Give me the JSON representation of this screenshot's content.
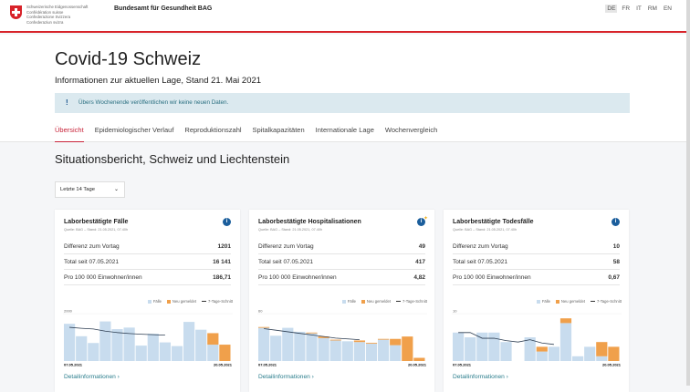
{
  "header": {
    "confederation": [
      "Schweizerische Eidgenossenschaft",
      "Confédération suisse",
      "Confederazione Svizzera",
      "Confederaziun svizra"
    ],
    "agency": "Bundesamt für Gesundheit BAG",
    "languages": [
      "DE",
      "FR",
      "IT",
      "RM",
      "EN"
    ],
    "active_language": "DE"
  },
  "page": {
    "title": "Covid-19 Schweiz",
    "subtitle": "Informationen zur aktuellen Lage, Stand 21. Mai 2021",
    "notice": "Übers Wochenende veröffentlichen wir keine neuen Daten.",
    "notice_icon": "!"
  },
  "tabs": [
    "Übersicht",
    "Epidemiologischer Verlauf",
    "Reproduktionszahl",
    "Spitalkapazitäten",
    "Internationale Lage",
    "Wochenvergleich"
  ],
  "section": {
    "title": "Situationsbericht, Schweiz und Liechtenstein",
    "period_select": "Letzte 14 Tage"
  },
  "legend": {
    "cases": "Fälle",
    "new": "Neu gemeldet",
    "avg": "7-Tage-Schnitt"
  },
  "colors": {
    "bar": "#c8dcee",
    "new": "#f0a04b",
    "avg": "#2e3e52",
    "accent": "#c8243a",
    "link": "#2a7d8c"
  },
  "cards": [
    {
      "title": "Laborbestätigte Fälle",
      "source": "Quelle: BAG – Stand: 21.05.2021, 07.40h",
      "icon": "info-icon",
      "rows": [
        {
          "label": "Differenz zum Vortag",
          "value": "1201"
        },
        {
          "label": "Total seit 07.05.2021",
          "value": "16 141"
        },
        {
          "label": "Pro 100 000 Einwohner/innen",
          "value": "186,71"
        }
      ],
      "ymax_label": "2000",
      "ymax": 2000,
      "x_start": "07.05.2021",
      "x_end": "20.05.2021",
      "reported": [
        1570,
        1045,
        760,
        1670,
        1345,
        1410,
        650,
        1150,
        785,
        630,
        1650,
        1320,
        690,
        0
      ],
      "new": [
        0,
        0,
        0,
        0,
        0,
        0,
        0,
        0,
        0,
        0,
        0,
        0,
        485,
        690
      ],
      "avg": [
        1420,
        1380,
        1350,
        1260,
        1200,
        1160,
        1130,
        1110,
        1090
      ],
      "link": "Detailinformationen"
    },
    {
      "title": "Laborbestätigte Hospitalisationen",
      "source": "Quelle: BAG – Stand: 21.05.2021, 07.40h",
      "icon": "info-new-icon",
      "rows": [
        {
          "label": "Differenz zum Vortag",
          "value": "49"
        },
        {
          "label": "Total seit 07.05.2021",
          "value": "417"
        },
        {
          "label": "Pro 100 000 Einwohner/innen",
          "value": "4,82"
        }
      ],
      "ymax_label": "60",
      "ymax": 60,
      "x_start": "07.05.2021",
      "x_end": "20.05.2021",
      "reported": [
        42,
        32,
        42,
        37,
        35,
        29,
        26,
        25,
        24,
        22,
        27,
        20,
        0,
        0
      ],
      "new": [
        1,
        0,
        0,
        0,
        1,
        2,
        1,
        0,
        2,
        1,
        1,
        8,
        31,
        4
      ],
      "avg": [
        41,
        39,
        37,
        35,
        33,
        31,
        29,
        28,
        27
      ],
      "link": "Detailinformationen"
    },
    {
      "title": "Laborbestätigte Todesfälle",
      "source": "Quelle: BAG – Stand: 21.05.2021, 07.40h",
      "icon": "info-icon",
      "rows": [
        {
          "label": "Differenz zum Vortag",
          "value": "10"
        },
        {
          "label": "Total seit 07.05.2021",
          "value": "58"
        },
        {
          "label": "Pro 100 000 Einwohner/innen",
          "value": "0,67"
        }
      ],
      "ymax_label": "10",
      "ymax": 10,
      "x_start": "07.05.2021",
      "x_end": "20.05.2021",
      "reported": [
        6,
        5,
        6,
        6,
        4,
        0,
        5,
        2,
        3,
        8,
        1,
        3,
        1,
        0
      ],
      "new": [
        0,
        0,
        0,
        0,
        0,
        0,
        0,
        1,
        0,
        1,
        0,
        0,
        3,
        3
      ],
      "avg": [
        6,
        6,
        4.8,
        4.8,
        4.3,
        4,
        4.5,
        3.8,
        3.5
      ],
      "link": "Detailinformationen"
    }
  ]
}
